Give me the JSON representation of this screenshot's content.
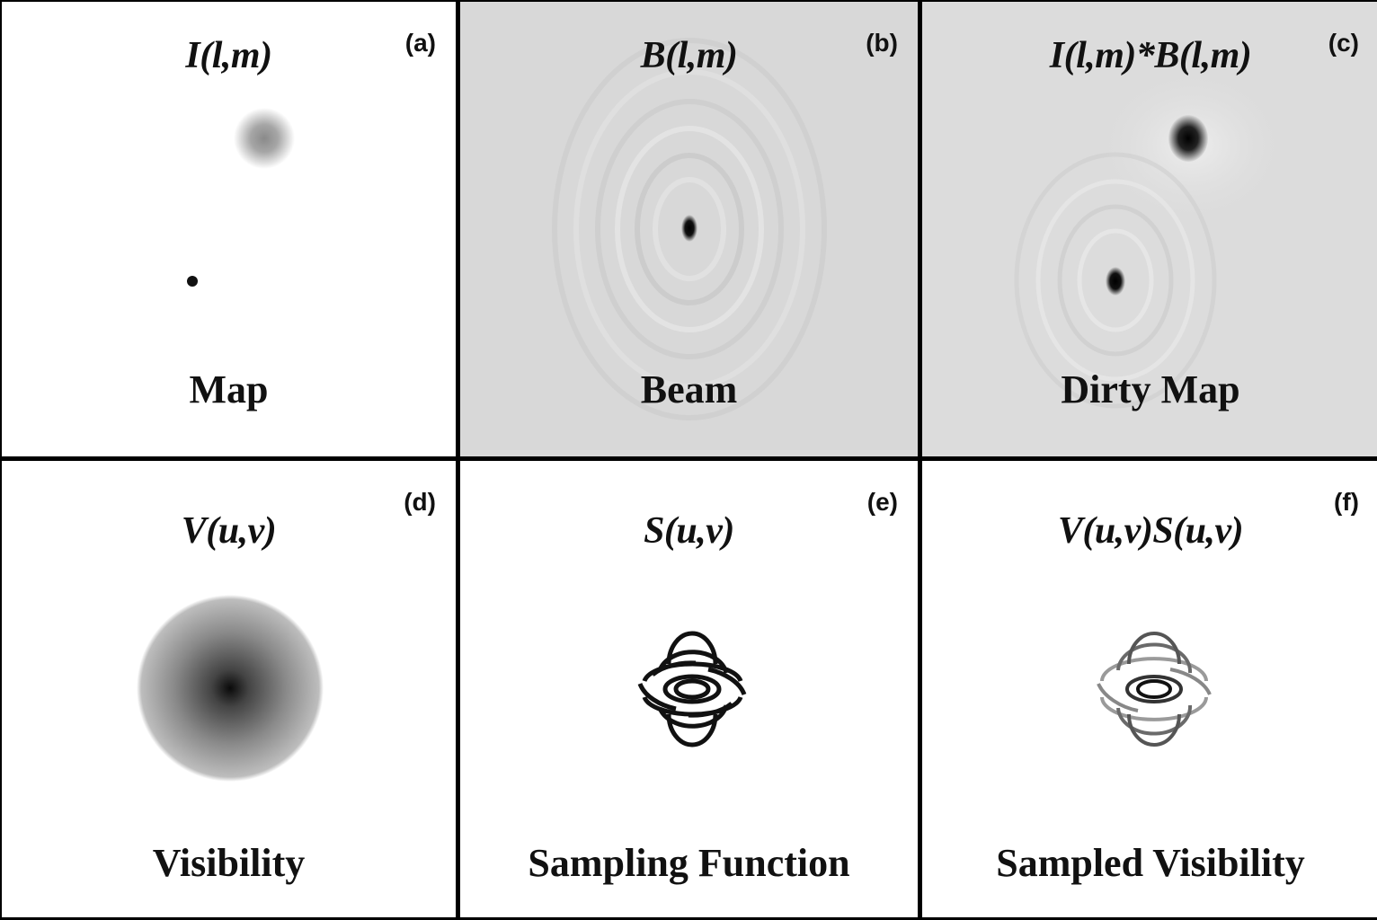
{
  "panels": [
    {
      "tag": "(a)",
      "formula": "I(l,m)",
      "caption": "Map"
    },
    {
      "tag": "(b)",
      "formula": "B(l,m)",
      "caption": "Beam"
    },
    {
      "tag": "(c)",
      "formula": "I(l,m)*B(l,m)",
      "caption": "Dirty Map"
    },
    {
      "tag": "(d)",
      "formula": "V(u,v)",
      "caption": "Visibility"
    },
    {
      "tag": "(e)",
      "formula": "S(u,v)",
      "caption": "Sampling Function"
    },
    {
      "tag": "(f)",
      "formula": "V(u,v)S(u,v)",
      "caption": "Sampled Visibility"
    }
  ]
}
